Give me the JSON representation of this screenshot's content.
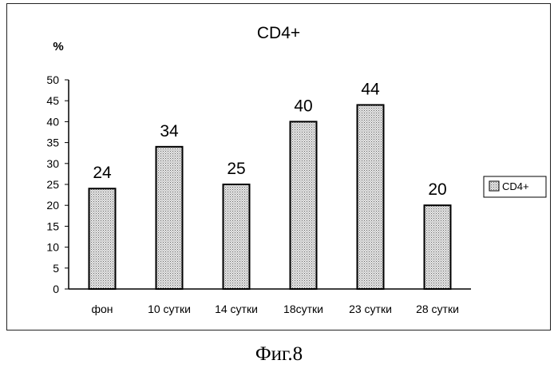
{
  "chart_data": {
    "type": "bar",
    "title": "CD4+",
    "ylabel": "%",
    "xlabel": "",
    "categories": [
      "фон",
      "10 сутки",
      "14 сутки",
      "18сутки",
      "23 сутки",
      "28 сутки"
    ],
    "series": [
      {
        "name": "CD4+",
        "values": [
          24,
          34,
          25,
          40,
          44,
          20
        ]
      }
    ],
    "ylim": [
      0,
      50
    ],
    "yticks": [
      "0",
      "5",
      "10",
      "15",
      "20",
      "25",
      "30",
      "35",
      "40",
      "45",
      "50"
    ],
    "grid": false,
    "legend_position": "right",
    "bar_fill": "#d9d9d9",
    "bar_stroke": "#000000"
  },
  "caption": "Фиг.8"
}
